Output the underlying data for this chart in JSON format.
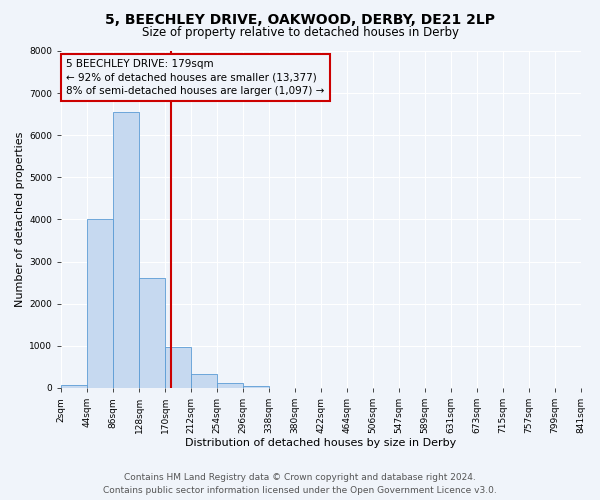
{
  "title": "5, BEECHLEY DRIVE, OAKWOOD, DERBY, DE21 2LP",
  "subtitle": "Size of property relative to detached houses in Derby",
  "xlabel": "Distribution of detached houses by size in Derby",
  "ylabel": "Number of detached properties",
  "bin_labels": [
    "2sqm",
    "44sqm",
    "86sqm",
    "128sqm",
    "170sqm",
    "212sqm",
    "254sqm",
    "296sqm",
    "338sqm",
    "380sqm",
    "422sqm",
    "464sqm",
    "506sqm",
    "547sqm",
    "589sqm",
    "631sqm",
    "673sqm",
    "715sqm",
    "757sqm",
    "799sqm",
    "841sqm"
  ],
  "bar_values": [
    60,
    4000,
    6550,
    2600,
    980,
    340,
    120,
    50,
    0,
    0,
    0,
    0,
    0,
    0,
    0,
    0,
    0,
    0,
    0,
    0
  ],
  "bar_color": "#c6d9f0",
  "bar_edge_color": "#5b9bd5",
  "vline_color": "#cc0000",
  "annotation_line1": "5 BEECHLEY DRIVE: 179sqm",
  "annotation_line2": "← 92% of detached houses are smaller (13,377)",
  "annotation_line3": "8% of semi-detached houses are larger (1,097) →",
  "annotation_box_color": "#cc0000",
  "ylim": [
    0,
    8000
  ],
  "yticks": [
    0,
    1000,
    2000,
    3000,
    4000,
    5000,
    6000,
    7000,
    8000
  ],
  "footer_line1": "Contains HM Land Registry data © Crown copyright and database right 2024.",
  "footer_line2": "Contains public sector information licensed under the Open Government Licence v3.0.",
  "bg_color": "#f0f4fa",
  "grid_color": "#ffffff",
  "title_fontsize": 10,
  "subtitle_fontsize": 8.5,
  "axis_label_fontsize": 8,
  "tick_fontsize": 6.5,
  "annotation_fontsize": 7.5,
  "footer_fontsize": 6.5
}
